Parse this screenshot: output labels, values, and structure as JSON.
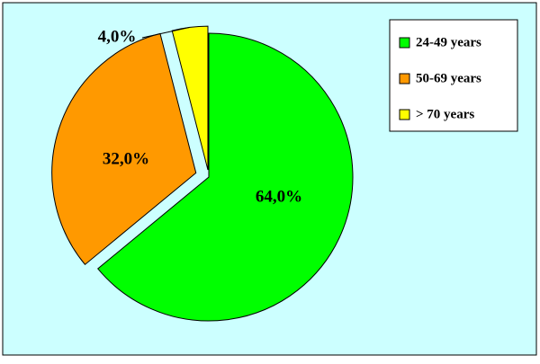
{
  "chart_data": {
    "type": "pie",
    "categories": [
      "24-49 years",
      "50-69 years",
      "> 70 years"
    ],
    "values": [
      64,
      32,
      4
    ],
    "value_labels": [
      "64,0%",
      "32,0%",
      "4,0%"
    ],
    "colors": [
      "#00ff00",
      "#ff9900",
      "#ffff00"
    ],
    "legend": "top-right"
  }
}
